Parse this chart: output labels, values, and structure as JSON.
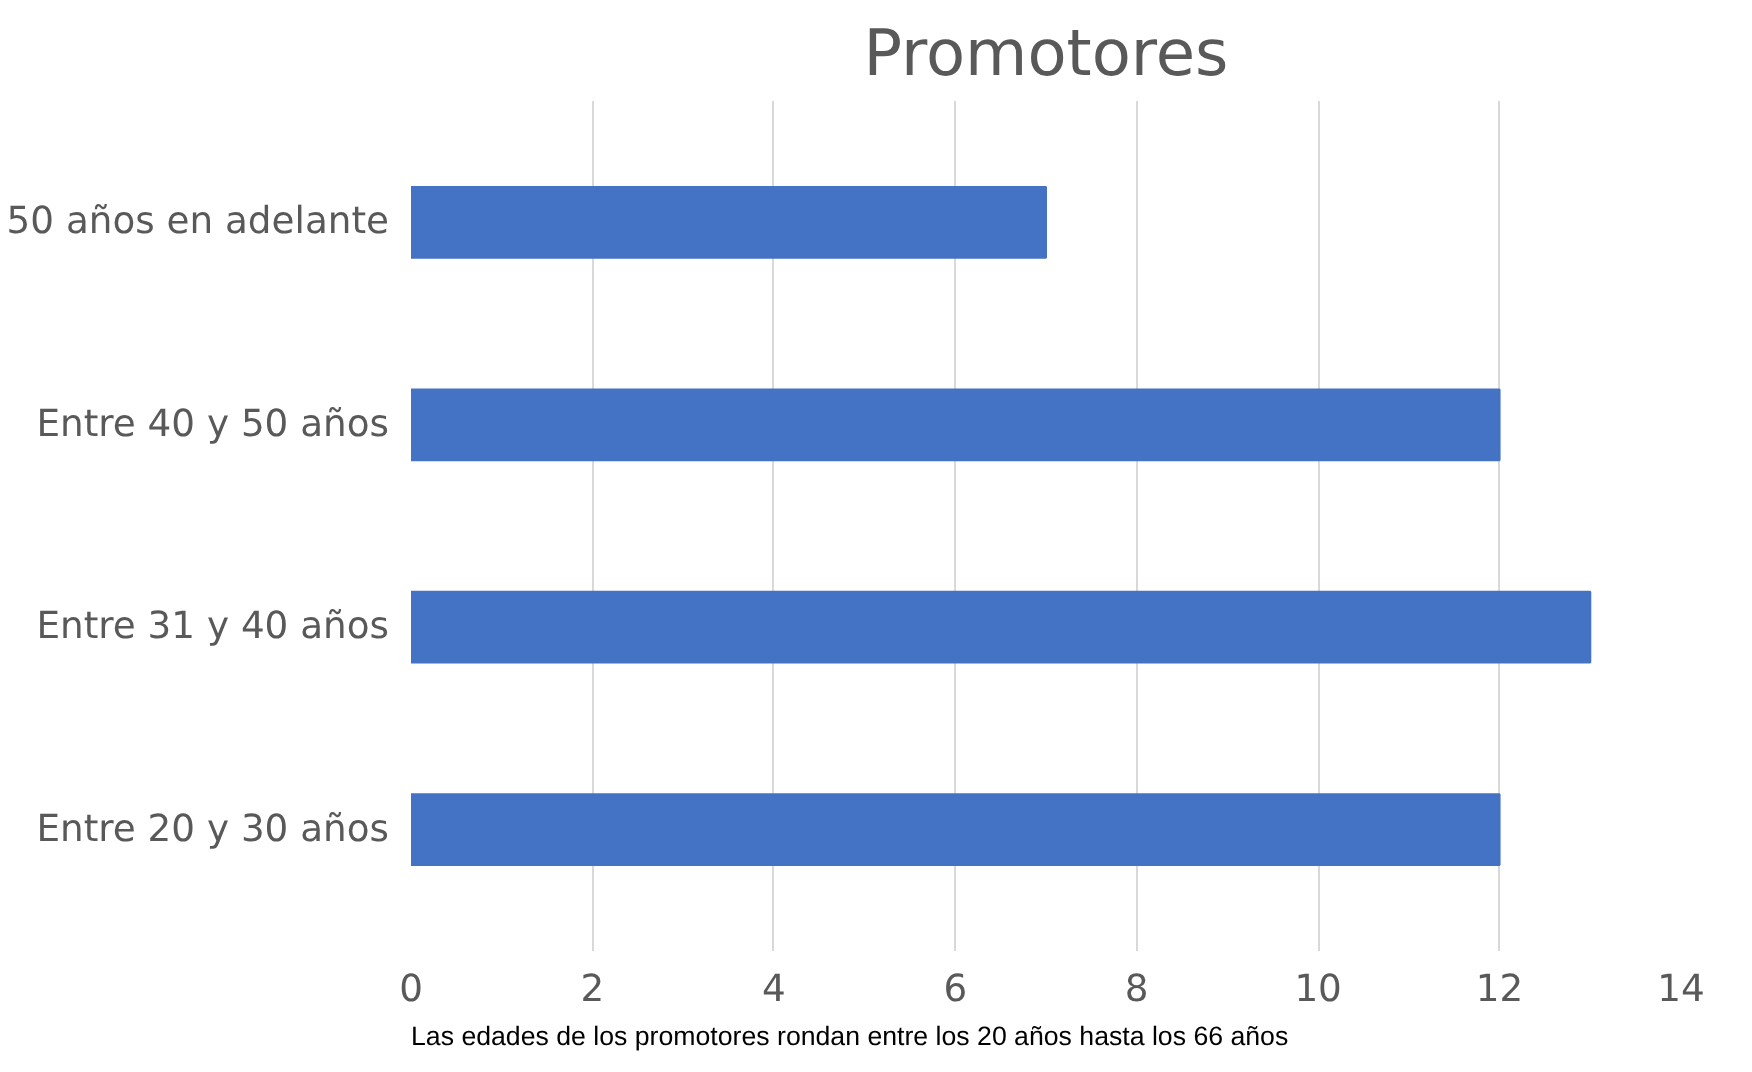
{
  "chart_data": {
    "type": "bar",
    "orientation": "horizontal",
    "title": "Promotores",
    "categories": [
      "50 años en adelante",
      "Entre 40 y 50 años",
      "Entre 31 y 40 años",
      "Entre 20 y 30 años"
    ],
    "values": [
      7,
      12,
      13,
      12
    ],
    "color": "#4472c4",
    "xlim": [
      0,
      14
    ],
    "xticks": [
      0,
      2,
      4,
      6,
      8,
      10,
      12,
      14
    ],
    "grid": "x",
    "annotations": [
      "Las edades de los promotores rondan entre los 20 años hasta los 66 años"
    ]
  }
}
